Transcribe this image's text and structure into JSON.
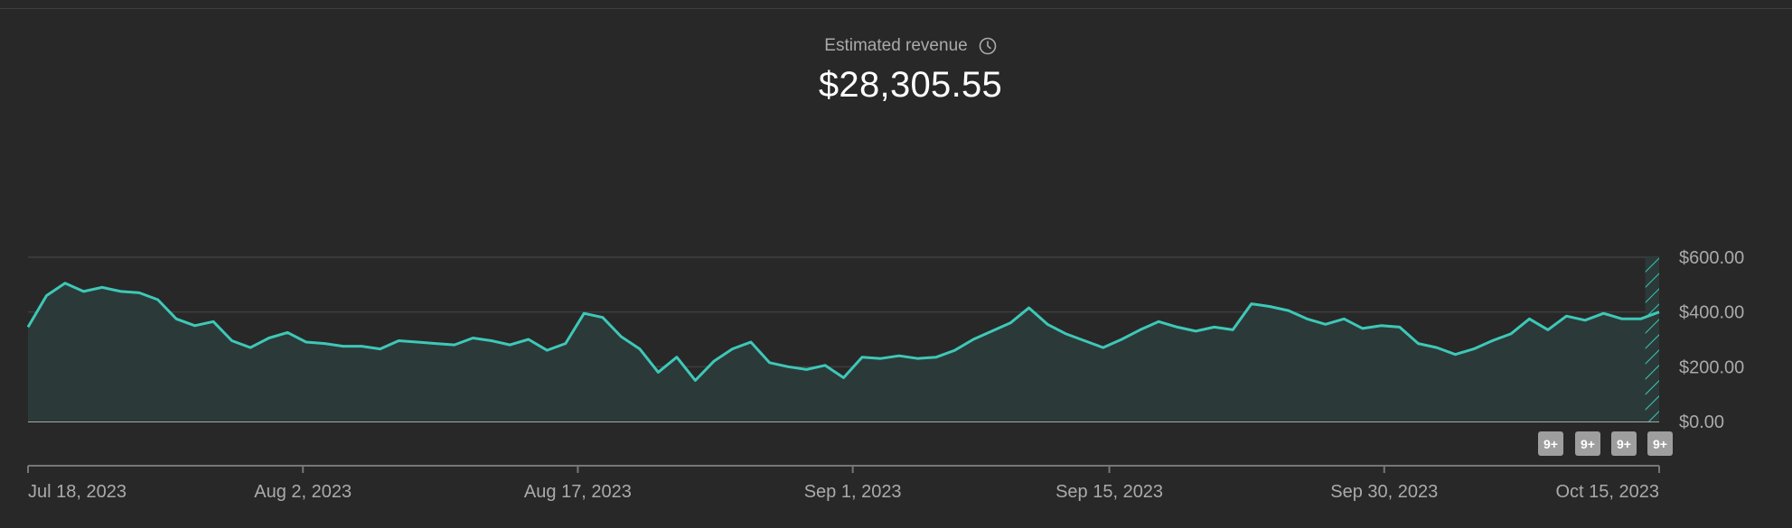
{
  "metric": {
    "label": "Estimated revenue",
    "icon": "clock-icon",
    "value": "$28,305.55"
  },
  "colors": {
    "background": "#282828",
    "line": "#3ec8b8",
    "area": "#2b3a39",
    "grid": "#3f3f3f",
    "baseline": "#cfcfcf",
    "text": "#aaaaaa"
  },
  "chart_data": {
    "type": "area",
    "ylim": [
      0,
      600
    ],
    "yticks": [
      "$0.00",
      "$200.00",
      "$400.00",
      "$600.00"
    ],
    "ytick_values": [
      0,
      200,
      400,
      600
    ],
    "grid": true,
    "x_start": "2023-07-18",
    "x_end": "2023-10-15",
    "xticks": [
      {
        "label": "Jul 18, 2023",
        "date": "2023-07-18"
      },
      {
        "label": "Aug 2, 2023",
        "date": "2023-08-02"
      },
      {
        "label": "Aug 17, 2023",
        "date": "2023-08-17"
      },
      {
        "label": "Sep 1, 2023",
        "date": "2023-09-01"
      },
      {
        "label": "Sep 15, 2023",
        "date": "2023-09-15"
      },
      {
        "label": "Sep 30, 2023",
        "date": "2023-09-30"
      },
      {
        "label": "Oct 15, 2023",
        "date": "2023-10-15"
      }
    ],
    "values": [
      345,
      460,
      505,
      475,
      490,
      475,
      470,
      445,
      375,
      350,
      365,
      295,
      270,
      305,
      325,
      290,
      285,
      275,
      275,
      265,
      295,
      290,
      285,
      280,
      305,
      295,
      280,
      300,
      260,
      285,
      395,
      380,
      310,
      265,
      180,
      235,
      150,
      220,
      265,
      290,
      215,
      200,
      190,
      205,
      160,
      235,
      230,
      240,
      230,
      235,
      260,
      300,
      330,
      360,
      415,
      355,
      320,
      295,
      270,
      300,
      335,
      365,
      345,
      330,
      345,
      335,
      430,
      420,
      405,
      375,
      355,
      375,
      340,
      350,
      345,
      285,
      270,
      245,
      265,
      295,
      320,
      375,
      335,
      385,
      370,
      395,
      375,
      375,
      400
    ],
    "projection": {
      "start_date": "2023-10-14",
      "end_date": "2023-10-15",
      "note": "hatched"
    },
    "badges": [
      "9+",
      "9+",
      "9+",
      "9+"
    ]
  }
}
